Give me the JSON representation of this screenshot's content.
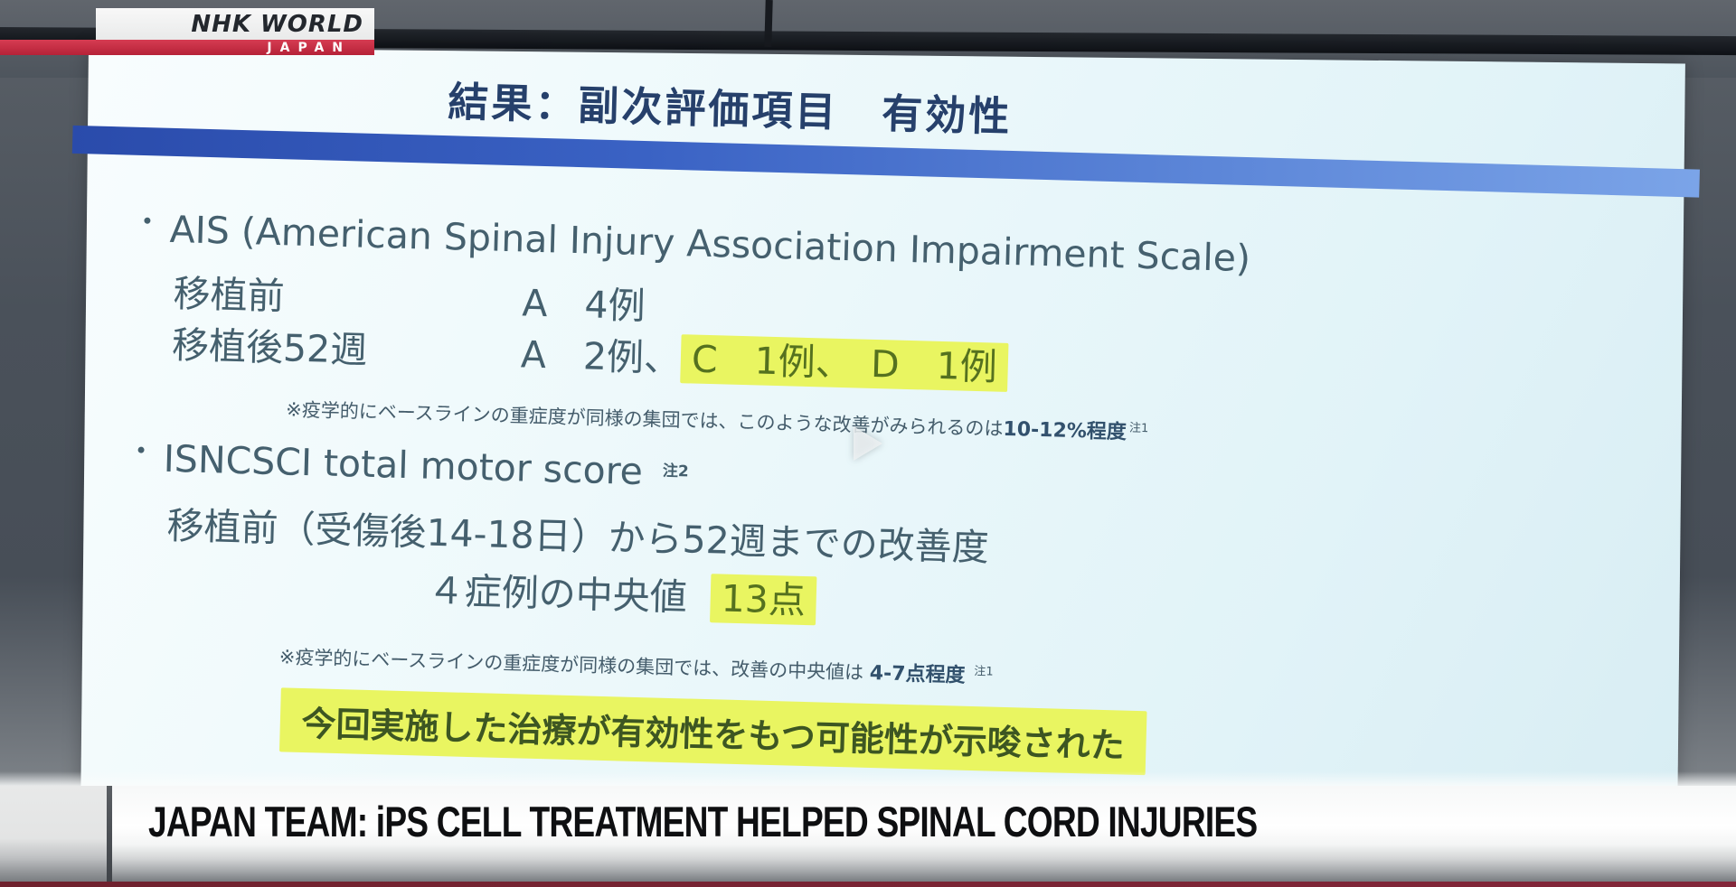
{
  "broadcaster": {
    "logo_primary": "NHK WORLD",
    "logo_secondary": "JAPAN"
  },
  "video_player": {
    "play_icon": "play-triangle"
  },
  "slide": {
    "title": "結果：副次評価項目　有効性",
    "ais": {
      "bullet": "•",
      "heading": "AIS (American Spinal Injury Association Impairment Scale)",
      "pre_label": "移植前",
      "pre_value": "A　4例",
      "post_label": "移植後52週",
      "post_value": "A　2例、",
      "post_highlight": "C　1例、　D　1例",
      "note": "※疫学的にベースラインの重症度が同様の集団では、このような改善がみられるのは",
      "note_emphasis": "10-12%程度",
      "note_ref": "注1"
    },
    "isncsci": {
      "bullet": "•",
      "heading": "ISNCSCI total motor score",
      "heading_ref": "注2",
      "improvement_line": "移植前（受傷後14-18日）から52週までの改善度",
      "median_label": "４症例の中央値",
      "median_highlight": "13点",
      "note": "※疫学的にベースラインの重症度が同様の集団では、改善の中央値は ",
      "note_emphasis": "4-7点程度",
      "note_ref": "注1"
    },
    "conclusion": "今回実施した治療が有効性をもつ可能性が示唆された"
  },
  "ticker": {
    "headline": "JAPAN TEAM: iPS CELL TREATMENT HELPED SPINAL CORD INJURIES"
  },
  "colors": {
    "highlight_yellow": "#e9f561",
    "title_text": "#26406b",
    "body_text": "#45606e",
    "title_bar_left": "#2a4bab",
    "title_bar_right": "#7ba4e8",
    "logo_red": "#c62b42",
    "conclusion_text": "#3d5622",
    "ticker_text": "#0e0f11",
    "bottom_line_red": "#7c2634"
  }
}
